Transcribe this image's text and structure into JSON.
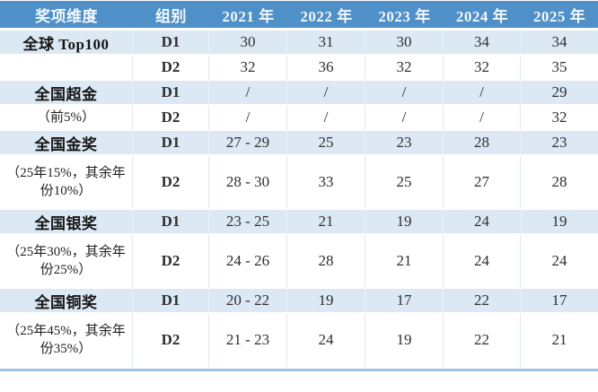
{
  "table": {
    "columns": [
      "奖项维度",
      "组别",
      "2021 年",
      "2022 年",
      "2023 年",
      "2024 年",
      "2025 年"
    ],
    "rows": [
      {
        "dimension": "全球 Top100",
        "style": "title",
        "group": "D1",
        "shade": "blue",
        "size": "single",
        "values": [
          "30",
          "31",
          "30",
          "34",
          "34"
        ]
      },
      {
        "dimension": "",
        "style": "title",
        "group": "D2",
        "shade": "white",
        "size": "single",
        "values": [
          "32",
          "36",
          "32",
          "32",
          "35"
        ]
      },
      {
        "dimension": "全国超金",
        "style": "title",
        "group": "D1",
        "shade": "blue",
        "size": "single",
        "values": [
          "/",
          "/",
          "/",
          "/",
          "29"
        ]
      },
      {
        "dimension": "（前5%）",
        "style": "note",
        "group": "D2",
        "shade": "white",
        "size": "single",
        "values": [
          "/",
          "/",
          "/",
          "/",
          "32"
        ]
      },
      {
        "dimension": "全国金奖",
        "style": "title",
        "group": "D1",
        "shade": "blue",
        "size": "single",
        "values": [
          "27 - 29",
          "25",
          "23",
          "28",
          "23"
        ]
      },
      {
        "dimension": "（25年15%，其余年份10%）",
        "style": "note",
        "group": "D2",
        "shade": "white",
        "size": "double",
        "values": [
          "28 - 30",
          "33",
          "25",
          "27",
          "28"
        ]
      },
      {
        "dimension": "全国银奖",
        "style": "title",
        "group": "D1",
        "shade": "blue",
        "size": "single",
        "values": [
          "23 - 25",
          "21",
          "19",
          "24",
          "19"
        ]
      },
      {
        "dimension": "（25年30%，其余年份25%）",
        "style": "note",
        "group": "D2",
        "shade": "white",
        "size": "double",
        "values": [
          "24 - 26",
          "28",
          "21",
          "24",
          "24"
        ]
      },
      {
        "dimension": "全国铜奖",
        "style": "title",
        "group": "D1",
        "shade": "blue",
        "size": "single",
        "values": [
          "20 - 22",
          "19",
          "17",
          "22",
          "17"
        ]
      },
      {
        "dimension": "（25年45%，其余年份35%）",
        "style": "note",
        "group": "D2",
        "shade": "white",
        "size": "double",
        "values": [
          "21 - 23",
          "24",
          "19",
          "22",
          "21"
        ]
      }
    ]
  },
  "colors": {
    "header_bg": "#4e90c7",
    "header_text": "#f3f8fc",
    "row_blue_bg": "#dce8f4",
    "row_white_bg": "#ffffff",
    "body_text": "#2f2f2f",
    "bottom_strip": "#9cc2e5"
  }
}
